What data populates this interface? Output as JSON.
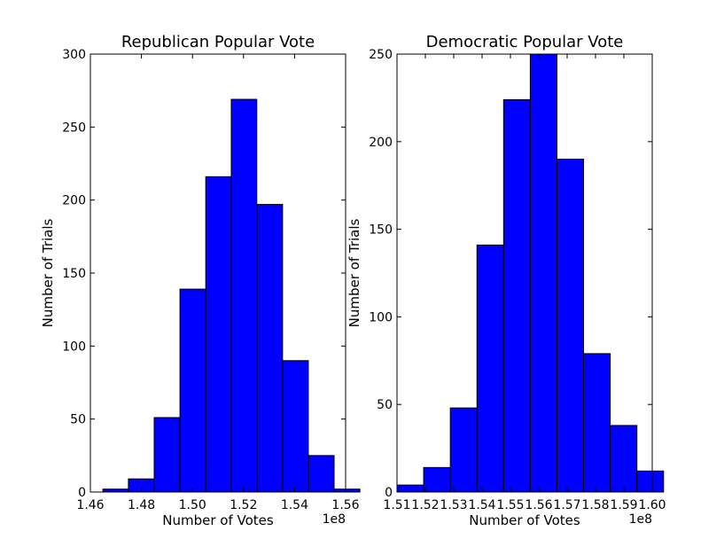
{
  "chart_data": [
    {
      "type": "bar",
      "title": "Republican Popular Vote",
      "xlabel": "Number of Votes",
      "ylabel": "Number of Trials",
      "x_offset_label": "1e8",
      "xlim": [
        1.46,
        1.56
      ],
      "ylim": [
        0,
        300
      ],
      "xtick_labels": [
        "1.46",
        "1.48",
        "1.50",
        "1.52",
        "1.54",
        "1.56"
      ],
      "ytick_labels": [
        "0",
        "50",
        "100",
        "150",
        "200",
        "250",
        "300"
      ],
      "bin_edges": [
        1.4649,
        1.4749,
        1.485,
        1.4951,
        1.5052,
        1.5152,
        1.5253,
        1.5354,
        1.5455,
        1.5556
      ],
      "values": [
        2,
        9,
        51,
        139,
        216,
        269,
        197,
        90,
        25,
        2
      ],
      "bar_color": "#0000ff",
      "grid": false
    },
    {
      "type": "bar",
      "title": "Democratic Popular Vote",
      "xlabel": "Number of Votes",
      "ylabel": "Number of Trials",
      "x_offset_label": "1e8",
      "xlim": [
        1.51,
        1.6
      ],
      "ylim": [
        0,
        250
      ],
      "xtick_labels": [
        "1.51",
        "1.52",
        "1.53",
        "1.54",
        "1.55",
        "1.56",
        "1.57",
        "1.58",
        "1.59",
        "1.60"
      ],
      "ytick_labels": [
        "0",
        "50",
        "100",
        "150",
        "200",
        "250"
      ],
      "bin_edges": [
        1.51,
        1.5194,
        1.5288,
        1.5382,
        1.5476,
        1.557,
        1.5664,
        1.5758,
        1.5852,
        1.5946
      ],
      "values": [
        4,
        14,
        48,
        141,
        224,
        251,
        190,
        79,
        38,
        12
      ],
      "bar_color": "#0000ff",
      "grid": false
    }
  ]
}
